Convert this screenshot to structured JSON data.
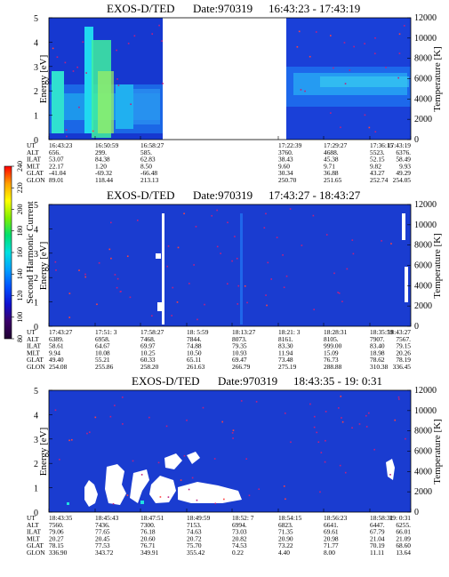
{
  "panels": [
    {
      "title": "EXOS-D/TED",
      "date_label": "Date:970319",
      "time_range": "16:43:23 - 17:43:19",
      "ylabel": "Energy [eV]",
      "y2label": "Temperature [K]",
      "yticks": [
        "0",
        "1",
        "2",
        "3",
        "4",
        "5"
      ],
      "y2ticks": [
        "0",
        "2000",
        "4000",
        "6000",
        "8000",
        "10000",
        "12000"
      ],
      "data_gap": true,
      "ephemeris": [
        {
          "label": "UT",
          "values": [
            "16:43:23",
            "16:50:59",
            "16:58:27",
            "",
            "",
            "17:22:39",
            "17:29:27",
            "17:36:15",
            "17:43:19"
          ]
        },
        {
          "label": "ALT",
          "values": [
            "656.",
            "299.",
            "585.",
            "",
            "",
            "3760.",
            "4688.",
            "5523.",
            "6376."
          ]
        },
        {
          "label": "ILAT",
          "values": [
            "53.07",
            "84.38",
            "62.83",
            "",
            "",
            "38.43",
            "45.38",
            "52.15",
            "58.49"
          ]
        },
        {
          "label": "MLT",
          "values": [
            "22.17",
            "1.20",
            "8.50",
            "",
            "",
            "9.60",
            "9.71",
            "9.82",
            "9.93"
          ]
        },
        {
          "label": "GLAT",
          "values": [
            "-41.04",
            "-69.32",
            "-66.48",
            "",
            "",
            "30.34",
            "36.88",
            "43.27",
            "49.29"
          ]
        },
        {
          "label": "GLON",
          "values": [
            "89.01",
            "118.44",
            "213.13",
            "",
            "",
            "250.70",
            "251.65",
            "252.74",
            "254.05"
          ]
        }
      ]
    },
    {
      "title": "EXOS-D/TED",
      "date_label": "Date:970319",
      "time_range": "17:43:27 - 18:43:27",
      "ylabel": "Energy [eV]",
      "y2label": "Temperature [K]",
      "yticks": [
        "0",
        "1",
        "2",
        "3",
        "4",
        "5"
      ],
      "y2ticks": [
        "0",
        "2000",
        "4000",
        "6000",
        "8000",
        "10000",
        "12000"
      ],
      "data_gap": false,
      "ephemeris": [
        {
          "label": "UT",
          "values": [
            "17:43:27",
            "17:51: 3",
            "17:58:27",
            "18: 5:59",
            "18:13:27",
            "18:21: 3",
            "18:28:31",
            "18:35:59",
            "18:43:27"
          ]
        },
        {
          "label": "ALT",
          "values": [
            "6389.",
            "6958.",
            "7468.",
            "7844.",
            "8073.",
            "8161.",
            "8105.",
            "7907.",
            "7567."
          ]
        },
        {
          "label": "ILAT",
          "values": [
            "58.61",
            "64.67",
            "69.97",
            "74.88",
            "79.35",
            "83.30",
            "999.00",
            "83.40",
            "79.15"
          ]
        },
        {
          "label": "MLT",
          "values": [
            "9.94",
            "10.08",
            "10.25",
            "10.50",
            "10.93",
            "11.94",
            "15.09",
            "18.98",
            "20.26"
          ]
        },
        {
          "label": "GLAT",
          "values": [
            "49.40",
            "55.21",
            "60.33",
            "65.11",
            "69.47",
            "73.48",
            "76.73",
            "78.62",
            "78.19"
          ]
        },
        {
          "label": "GLON",
          "values": [
            "254.08",
            "255.86",
            "258.20",
            "261.63",
            "266.79",
            "275.19",
            "288.88",
            "310.38",
            "336.45"
          ]
        }
      ]
    },
    {
      "title": "EXOS-D/TED",
      "date_label": "Date:970319",
      "time_range": "18:43:35 - 19: 0:31",
      "ylabel": "Energy [eV]",
      "y2label": "Temperature [K]",
      "yticks": [
        "0",
        "1",
        "2",
        "3",
        "4",
        "5"
      ],
      "y2ticks": [
        "0",
        "2000",
        "4000",
        "6000",
        "8000",
        "10000",
        "12000"
      ],
      "data_gap": false,
      "ephemeris": [
        {
          "label": "UT",
          "values": [
            "18:43:35",
            "18:45:43",
            "18:47:51",
            "18:49:59",
            "18:52: 7",
            "18:54:15",
            "18:56:23",
            "18:58:31",
            "19: 0:31"
          ]
        },
        {
          "label": "ALT",
          "values": [
            "7560.",
            "7436.",
            "7300.",
            "7153.",
            "6994.",
            "6823.",
            "6641.",
            "6447.",
            "6255."
          ]
        },
        {
          "label": "ILAT",
          "values": [
            "79.06",
            "77.65",
            "76.18",
            "74.63",
            "73.03",
            "71.35",
            "69.61",
            "67.79",
            "66.01"
          ]
        },
        {
          "label": "MLT",
          "values": [
            "20.27",
            "20.45",
            "20.60",
            "20.72",
            "20.82",
            "20.90",
            "20.98",
            "21.04",
            "21.09"
          ]
        },
        {
          "label": "GLAT",
          "values": [
            "78.15",
            "77.53",
            "76.71",
            "75.70",
            "74.53",
            "73.22",
            "71.77",
            "70.19",
            "68.60"
          ]
        },
        {
          "label": "GLON",
          "values": [
            "336.90",
            "343.72",
            "349.91",
            "355.42",
            "0.22",
            "4.40",
            "8.00",
            "11.11",
            "13.64"
          ]
        }
      ]
    }
  ],
  "colorbar": {
    "label": "Second Harmonic Current",
    "ticks": [
      "80",
      "100",
      "120",
      "140",
      "160",
      "180",
      "200",
      "220",
      "240"
    ],
    "stops": [
      "#200030",
      "#3a0068",
      "#1010d0",
      "#0050ff",
      "#00a0ff",
      "#00e0e0",
      "#00e070",
      "#80f000",
      "#ffff00",
      "#ffa000",
      "#ff0000"
    ]
  },
  "chart_data": [
    {
      "type": "heatmap",
      "title": "EXOS-D/TED Date:970319 16:43:23 - 17:43:19",
      "xlabel": "UT",
      "ylabel": "Energy [eV]",
      "y2label": "Temperature [K]",
      "ylim": [
        0,
        5
      ],
      "y2lim": [
        0,
        12000
      ],
      "x": [
        "16:43:23",
        "16:50:59",
        "16:58:27",
        "17:22:39",
        "17:29:27",
        "17:36:15",
        "17:43:19"
      ],
      "color_range": [
        80,
        240
      ],
      "colorbar_label": "Second Harmonic Current",
      "data_gap": [
        "16:58:27",
        "17:22:39"
      ]
    },
    {
      "type": "heatmap",
      "title": "EXOS-D/TED Date:970319 17:43:27 - 18:43:27",
      "xlabel": "UT",
      "ylabel": "Energy [eV]",
      "y2label": "Temperature [K]",
      "ylim": [
        0,
        5
      ],
      "y2lim": [
        0,
        12000
      ],
      "x": [
        "17:43:27",
        "17:51: 3",
        "17:58:27",
        "18: 5:59",
        "18:13:27",
        "18:21: 3",
        "18:28:31",
        "18:35:59",
        "18:43:27"
      ],
      "color_range": [
        80,
        240
      ],
      "colorbar_label": "Second Harmonic Current"
    },
    {
      "type": "heatmap",
      "title": "EXOS-D/TED Date:970319 18:43:35 - 19: 0:31",
      "xlabel": "UT",
      "ylabel": "Energy [eV]",
      "y2label": "Temperature [K]",
      "ylim": [
        0,
        5
      ],
      "y2lim": [
        0,
        12000
      ],
      "x": [
        "18:43:35",
        "18:45:43",
        "18:47:51",
        "18:49:59",
        "18:52: 7",
        "18:54:15",
        "18:56:23",
        "18:58:31",
        "19: 0:31"
      ],
      "color_range": [
        80,
        240
      ],
      "colorbar_label": "Second Harmonic Current"
    }
  ]
}
